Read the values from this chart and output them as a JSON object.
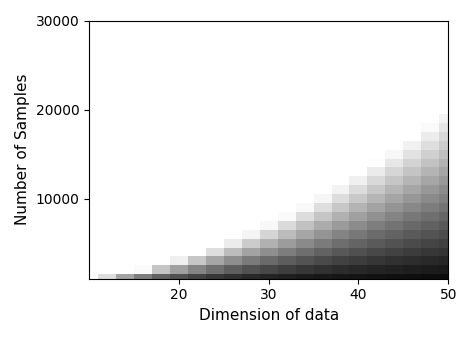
{
  "d_values": [
    10,
    12,
    14,
    16,
    18,
    20,
    22,
    24,
    26,
    28,
    30,
    32,
    34,
    36,
    38,
    40,
    42,
    44,
    46,
    48,
    50
  ],
  "n_values": [
    1000,
    2000,
    3000,
    4000,
    5000,
    6000,
    7000,
    8000,
    9000,
    10000,
    11000,
    12000,
    13000,
    14000,
    15000,
    16000,
    17000,
    18000,
    19000,
    20000,
    21000,
    22000,
    23000,
    24000,
    25000,
    26000,
    27000,
    28000,
    29000,
    30000
  ],
  "xlabel": "Dimension of data",
  "ylabel": "Number of Samples",
  "xticks": [
    20,
    30,
    40,
    50
  ],
  "yticks": [
    10000,
    20000,
    30000
  ],
  "cmap": "gray",
  "scale_factor": 8.0,
  "figsize": [
    4.72,
    3.38
  ],
  "dpi": 100
}
